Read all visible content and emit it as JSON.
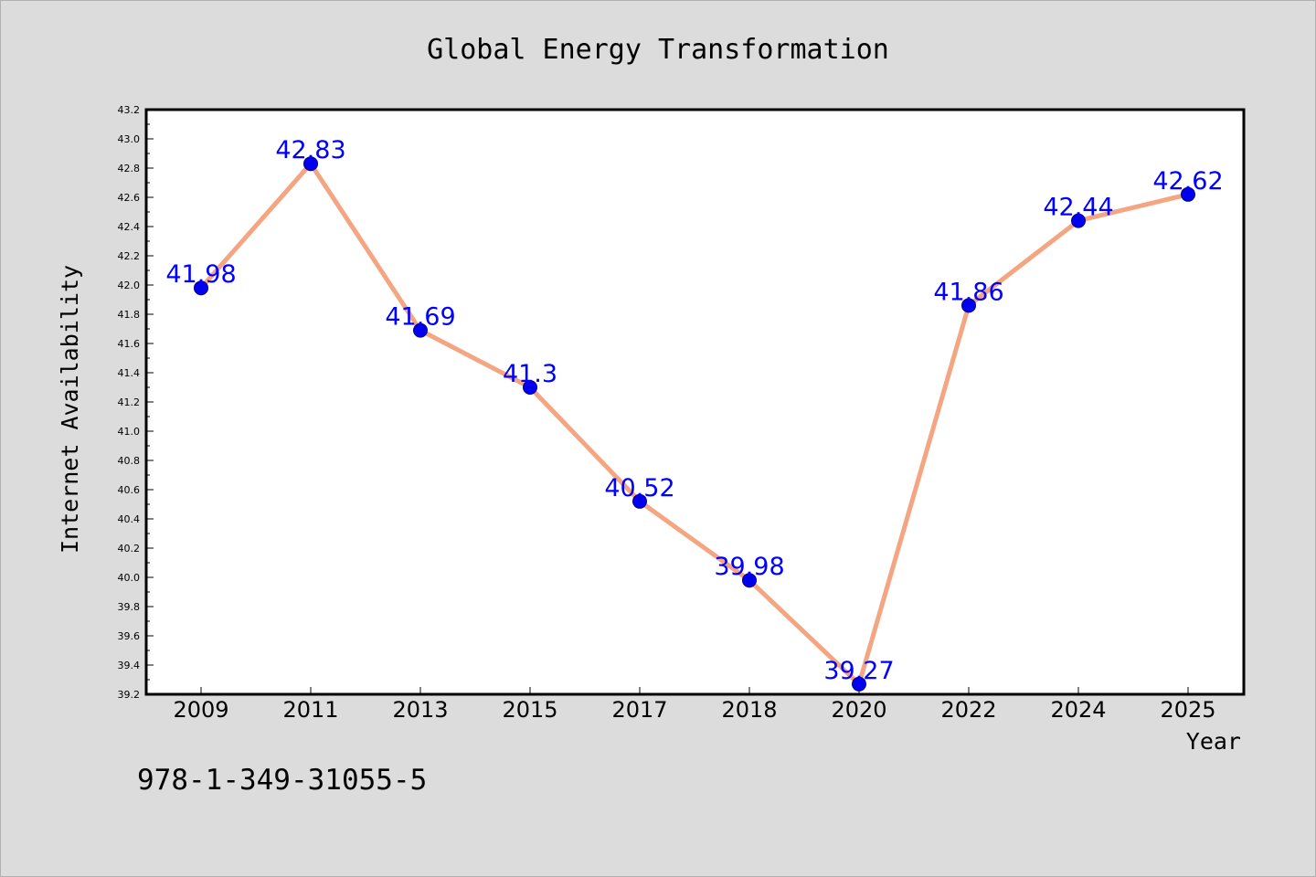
{
  "chart_data": {
    "type": "line",
    "title": "Global Energy Transformation",
    "xlabel": "Year",
    "ylabel": "Internet Availability",
    "categories": [
      "2009",
      "2011",
      "2013",
      "2015",
      "2017",
      "2018",
      "2020",
      "2022",
      "2024",
      "2025"
    ],
    "values": [
      41.98,
      42.83,
      41.69,
      41.3,
      40.52,
      39.98,
      39.27,
      41.86,
      42.44,
      42.62
    ],
    "data_labels": [
      "41.98",
      "42.83",
      "41.69",
      "41.3",
      "40.52",
      "39.98",
      "39.27",
      "41.86",
      "42.44",
      "42.62"
    ],
    "ylim": [
      39.2,
      43.2
    ],
    "yticks": [
      "39.2",
      "39.4",
      "39.6",
      "39.8",
      "40.0",
      "40.2",
      "40.4",
      "40.6",
      "40.8",
      "41.0",
      "41.2",
      "41.4",
      "41.6",
      "41.8",
      "42.0",
      "42.2",
      "42.4",
      "42.6",
      "42.8",
      "43.0",
      "43.2"
    ],
    "grid": false,
    "legend": "none",
    "line_color": "#f4a582",
    "marker_color": "#0000ee",
    "label_color": "#0000ff"
  },
  "footer": {
    "isbn": "978-1-349-31055-5"
  }
}
